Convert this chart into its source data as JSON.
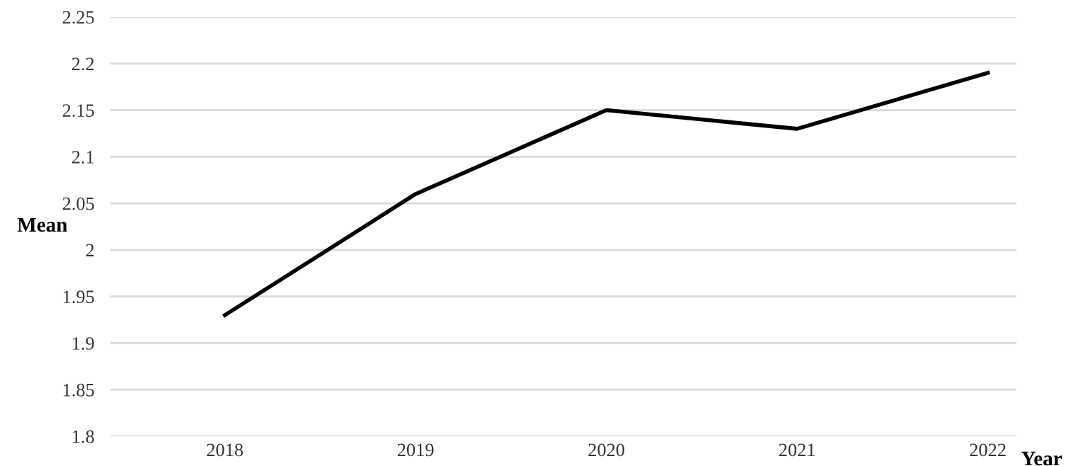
{
  "chart_data": {
    "type": "line",
    "xlabel": "Year",
    "ylabel": "Mean",
    "categories": [
      "2018",
      "2019",
      "2020",
      "2021",
      "2022"
    ],
    "series": [
      {
        "color": "#000000",
        "values": [
          1.93,
          2.06,
          2.15,
          2.13,
          2.19
        ]
      }
    ],
    "ylim": [
      1.8,
      2.25
    ],
    "yticks": [
      1.8,
      1.85,
      1.9,
      1.95,
      2,
      2.05,
      2.1,
      2.15,
      2.2,
      2.25
    ],
    "grid": "y",
    "legend": false,
    "marker": "none",
    "line_style": "solid"
  }
}
